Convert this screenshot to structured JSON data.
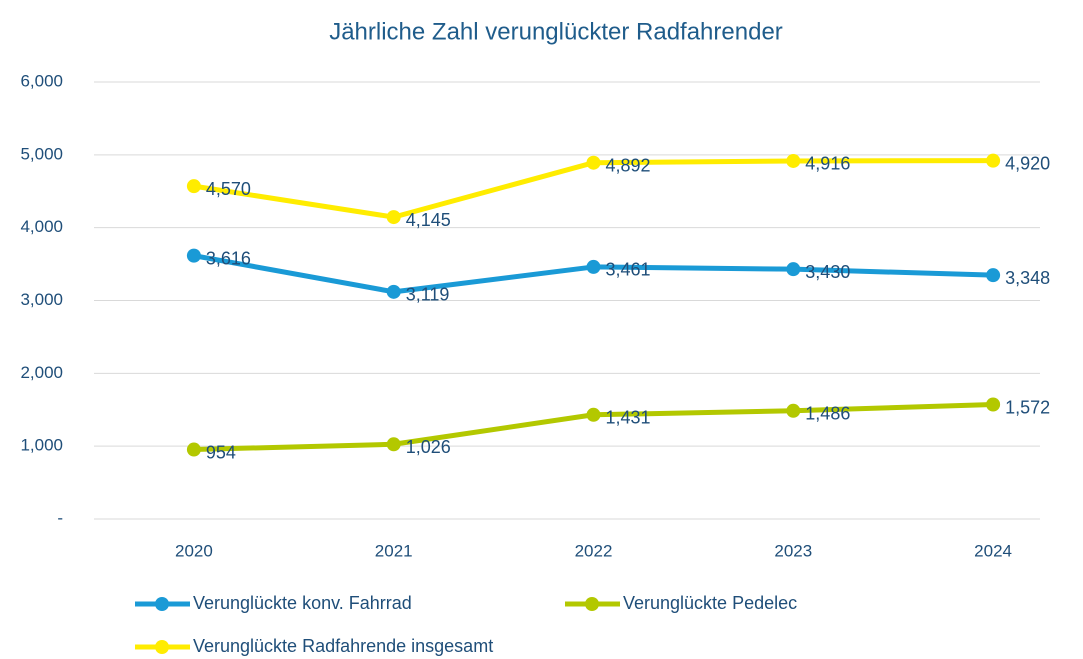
{
  "chart_data": {
    "type": "line",
    "title": "Jährliche Zahl verunglückter Radfahrender",
    "categories": [
      "2020",
      "2021",
      "2022",
      "2023",
      "2024"
    ],
    "series": [
      {
        "name": "Verunglückte konv. Fahrrad",
        "color": "#1a9ad6",
        "values": [
          3616,
          3119,
          3461,
          3430,
          3348
        ],
        "value_labels": [
          "3,616",
          "3,119",
          "3,461",
          "3,430",
          "3,348"
        ]
      },
      {
        "name": "Verunglückte Pedelec",
        "color": "#b3c800",
        "values": [
          954,
          1026,
          1431,
          1486,
          1572
        ],
        "value_labels": [
          "954",
          "1,026",
          "1,431",
          "1,486",
          "1,572"
        ]
      },
      {
        "name": "Verunglückte Radfahrende insgesamt",
        "color": "#ffec00",
        "values": [
          4570,
          4145,
          4892,
          4916,
          4920
        ],
        "value_labels": [
          "4,570",
          "4,145",
          "4,892",
          "4,916",
          "4,920"
        ]
      }
    ],
    "ylim": [
      0,
      6000
    ],
    "yticks": [
      {
        "value": 0,
        "label": "-"
      },
      {
        "value": 1000,
        "label": "1,000"
      },
      {
        "value": 2000,
        "label": "2,000"
      },
      {
        "value": 3000,
        "label": "3,000"
      },
      {
        "value": 4000,
        "label": "4,000"
      },
      {
        "value": 5000,
        "label": "5,000"
      },
      {
        "value": 6000,
        "label": "6,000"
      }
    ],
    "grid": true,
    "legend": "bottom"
  }
}
